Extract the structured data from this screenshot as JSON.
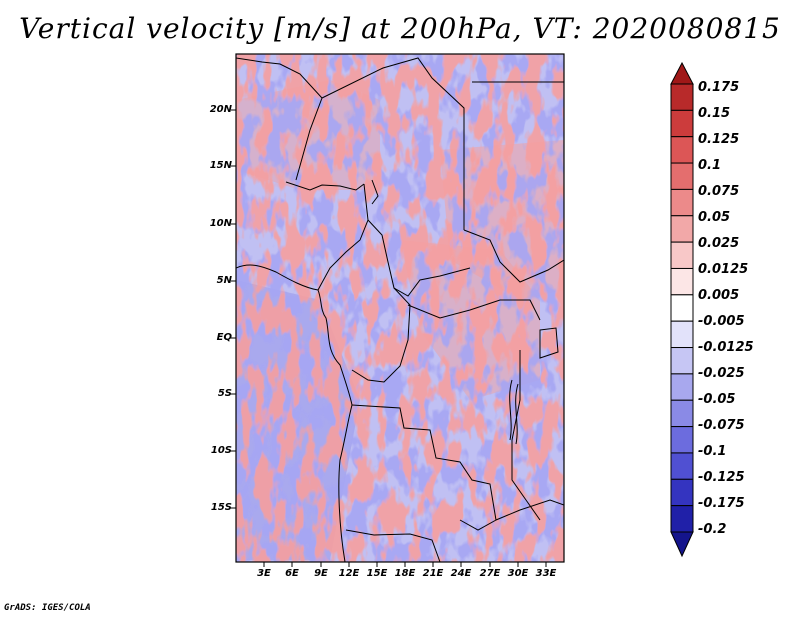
{
  "title": "Vertical velocity [m/s] at 200hPa, VT: 2020080815",
  "footer": "GrADS: IGES/COLA",
  "axes": {
    "lat_labels": [
      "20N",
      "15N",
      "10N",
      "5N",
      "EQ",
      "5S",
      "10S",
      "15S"
    ],
    "lon_labels": [
      "3E",
      "6E",
      "9E",
      "12E",
      "15E",
      "18E",
      "21E",
      "24E",
      "27E",
      "30E",
      "33E"
    ]
  },
  "colorbar": {
    "levels": [
      "0.175",
      "0.15",
      "0.125",
      "0.1",
      "0.075",
      "0.05",
      "0.025",
      "0.0125",
      "0.005",
      "-0.005",
      "-0.0125",
      "-0.025",
      "-0.05",
      "-0.075",
      "-0.1",
      "-0.125",
      "-0.175",
      "-0.2"
    ],
    "colors": [
      "#a01818",
      "#b82a2a",
      "#cc3c3c",
      "#dc5656",
      "#e46e6e",
      "#ec8a8a",
      "#f2a8a8",
      "#f8c8c8",
      "#fce6e6",
      "#ffffff",
      "#e2e2fa",
      "#c6c6f4",
      "#a8a8ee",
      "#8a8ae6",
      "#6c6cde",
      "#5050d2",
      "#3434c0",
      "#2020a8",
      "#14148c"
    ]
  }
}
